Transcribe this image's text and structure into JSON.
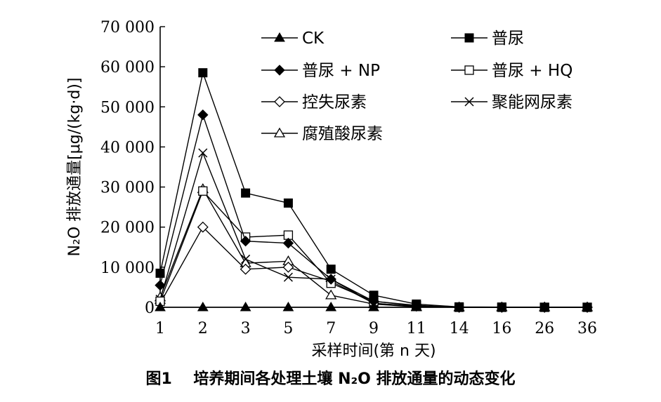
{
  "caption": "图1    培养期间各处理土壤 N₂O 排放通量的动态变化",
  "chart_data": {
    "type": "line",
    "xlabel": "采样时间(第 n 天)",
    "ylabel": "N₂O 排放通量[μg/(kg·d)]",
    "categories": [
      "1",
      "2",
      "3",
      "5",
      "7",
      "9",
      "11",
      "14",
      "16",
      "26",
      "36"
    ],
    "ylim": [
      0,
      70000
    ],
    "yticks": [
      0,
      10000,
      20000,
      30000,
      40000,
      50000,
      60000,
      70000
    ],
    "ytick_labels": [
      "0",
      "10 000",
      "20 000",
      "30 000",
      "40 000",
      "50 000",
      "60 000",
      "70 000"
    ],
    "grid": false,
    "legend_position": "top-right",
    "series": [
      {
        "name": "CK",
        "marker": "triangle-filled",
        "values": [
          0,
          0,
          0,
          0,
          0,
          0,
          0,
          0,
          0,
          0,
          0
        ]
      },
      {
        "name": "普尿",
        "marker": "square-filled",
        "values": [
          8500,
          58500,
          28500,
          26000,
          9500,
          3000,
          800,
          100,
          50,
          0,
          0
        ]
      },
      {
        "name": "普尿 + NP",
        "marker": "diamond-filled",
        "values": [
          5500,
          48000,
          16500,
          16000,
          7000,
          1500,
          500,
          0,
          0,
          0,
          0
        ]
      },
      {
        "name": "普尿 + HQ",
        "marker": "square-open",
        "values": [
          1500,
          29000,
          17500,
          18000,
          6000,
          1500,
          400,
          0,
          0,
          0,
          0
        ]
      },
      {
        "name": "控失尿素",
        "marker": "diamond-open",
        "values": [
          1000,
          20000,
          9500,
          10000,
          6500,
          1000,
          300,
          0,
          0,
          0,
          0
        ]
      },
      {
        "name": "聚能网尿素",
        "marker": "x",
        "values": [
          2000,
          38500,
          12000,
          7500,
          7000,
          1000,
          200,
          0,
          0,
          0,
          0
        ]
      },
      {
        "name": "腐殖酸尿素",
        "marker": "triangle-open",
        "values": [
          2500,
          29500,
          11000,
          11500,
          3000,
          800,
          100,
          0,
          0,
          0,
          0
        ]
      }
    ]
  }
}
